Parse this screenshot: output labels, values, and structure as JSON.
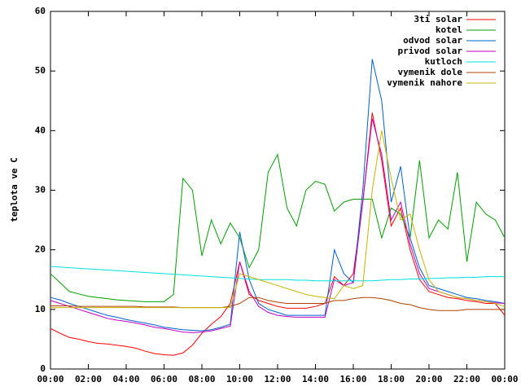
{
  "chart_data": {
    "type": "line",
    "ylabel": "teplota ve C",
    "x": [
      0,
      0.5,
      1,
      1.5,
      2,
      2.5,
      3,
      3.5,
      4,
      4.5,
      5,
      5.5,
      6,
      6.5,
      7,
      7.5,
      8,
      8.5,
      9,
      9.5,
      10,
      10.5,
      11,
      11.5,
      12,
      12.5,
      13,
      13.5,
      14,
      14.5,
      15,
      15.5,
      16,
      16.5,
      17,
      17.5,
      18,
      18.5,
      19,
      19.5,
      20,
      20.5,
      21,
      21.5,
      22,
      22.5,
      23,
      23.5,
      24
    ],
    "xlim": [
      0,
      24
    ],
    "xticks": [
      {
        "value": 0,
        "label": "00:00"
      },
      {
        "value": 2,
        "label": "02:00"
      },
      {
        "value": 4,
        "label": "04:00"
      },
      {
        "value": 6,
        "label": "06:00"
      },
      {
        "value": 8,
        "label": "08:00"
      },
      {
        "value": 10,
        "label": "10:00"
      },
      {
        "value": 12,
        "label": "12:00"
      },
      {
        "value": 14,
        "label": "14:00"
      },
      {
        "value": 16,
        "label": "16:00"
      },
      {
        "value": 18,
        "label": "18:00"
      },
      {
        "value": 20,
        "label": "20:00"
      },
      {
        "value": 22,
        "label": "22:00"
      },
      {
        "value": 24,
        "label": "00:00"
      }
    ],
    "ylim": [
      0,
      60
    ],
    "yticks": [
      0,
      10,
      20,
      30,
      40,
      50,
      60
    ],
    "legend": "top-right",
    "series": [
      {
        "name": "3ti solar",
        "color": "#ff0000",
        "values": [
          6.8,
          6,
          5.3,
          5,
          4.6,
          4.3,
          4.2,
          4,
          3.8,
          3.5,
          3,
          2.6,
          2.4,
          2.3,
          2.7,
          4,
          6,
          7.5,
          8.8,
          11,
          18,
          12.5,
          11.5,
          11,
          10.5,
          10.2,
          10.2,
          10.2,
          10.5,
          11,
          15.5,
          14,
          16,
          28,
          43,
          35,
          24,
          27,
          20,
          15,
          13,
          12.5,
          12,
          11.8,
          11.5,
          11.3,
          11,
          11,
          9
        ]
      },
      {
        "name": "kotel",
        "color": "#00a000",
        "values": [
          16,
          14.5,
          13,
          12.6,
          12.2,
          12,
          11.8,
          11.6,
          11.5,
          11.4,
          11.3,
          11.3,
          11.3,
          12.5,
          32,
          30,
          19,
          25,
          21,
          24.5,
          22,
          17,
          20,
          33,
          36,
          27,
          24,
          30,
          31.5,
          31,
          26.5,
          28,
          28.5,
          28.5,
          28.5,
          22,
          27,
          26,
          22,
          35,
          22,
          25,
          23.5,
          33,
          18,
          28,
          26,
          25,
          22
        ]
      },
      {
        "name": "odvod solar",
        "color": "#0060d0",
        "values": [
          12,
          11.6,
          11,
          10.5,
          10,
          9.5,
          9,
          8.7,
          8.3,
          8,
          7.7,
          7.4,
          7,
          6.8,
          6.6,
          6.5,
          6.4,
          6.6,
          7,
          7.5,
          23,
          15,
          11,
          10,
          9.5,
          9,
          9,
          9,
          9,
          9,
          20,
          16,
          14.5,
          30,
          52,
          45,
          28,
          34,
          22,
          17,
          14,
          13.5,
          13,
          12.5,
          12,
          11.8,
          11.5,
          11.3,
          11
        ]
      },
      {
        "name": "privod solar",
        "color": "#c000c0",
        "values": [
          11.5,
          11,
          10.5,
          10,
          9.5,
          9,
          8.5,
          8.2,
          8,
          7.7,
          7.4,
          7,
          6.8,
          6.5,
          6.2,
          6.1,
          6.2,
          6.4,
          6.8,
          7.2,
          18,
          13,
          10.5,
          9.5,
          9,
          8.8,
          8.7,
          8.7,
          8.7,
          8.7,
          15,
          14,
          14.5,
          28,
          42,
          36,
          25,
          28,
          21,
          16,
          13.5,
          13,
          12.5,
          12,
          11.8,
          11.5,
          11.3,
          11.1,
          11
        ]
      },
      {
        "name": "kutloch",
        "color": "#00e0e0",
        "values": [
          17.2,
          17.1,
          17,
          16.9,
          16.8,
          16.7,
          16.6,
          16.5,
          16.4,
          16.3,
          16.2,
          16.1,
          16,
          15.9,
          15.8,
          15.7,
          15.6,
          15.5,
          15.4,
          15.3,
          15.2,
          15.1,
          15,
          15,
          15,
          15,
          14.9,
          14.9,
          14.8,
          14.8,
          14.8,
          14.8,
          14.8,
          14.8,
          14.8,
          14.9,
          15,
          15,
          15.1,
          15.1,
          15.2,
          15.2,
          15.3,
          15.3,
          15.4,
          15.4,
          15.5,
          15.5,
          15.5
        ]
      },
      {
        "name": "vymenik dole",
        "color": "#b04000",
        "values": [
          10.6,
          10.6,
          10.6,
          10.5,
          10.5,
          10.5,
          10.5,
          10.5,
          10.5,
          10.5,
          10.4,
          10.4,
          10.4,
          10.4,
          10.3,
          10.3,
          10.3,
          10.3,
          10.3,
          10.5,
          11,
          12,
          12,
          11.5,
          11.2,
          11,
          11,
          11,
          11,
          11,
          11.5,
          11.5,
          11.8,
          12,
          12,
          11.8,
          11.5,
          11,
          10.8,
          10.3,
          10,
          9.8,
          9.8,
          9.8,
          10,
          10,
          10,
          10,
          10
        ]
      },
      {
        "name": "vymenik nahore",
        "color": "#c8b400",
        "values": [
          10.3,
          10.3,
          10.3,
          10.3,
          10.3,
          10.3,
          10.3,
          10.3,
          10.3,
          10.3,
          10.3,
          10.3,
          10.3,
          10.3,
          10.3,
          10.3,
          10.3,
          10.3,
          10.3,
          10.3,
          16,
          15.5,
          15,
          14.5,
          14,
          13.5,
          13,
          12.5,
          12.2,
          12,
          11.8,
          14,
          13.5,
          14,
          30,
          40,
          32,
          25,
          26,
          20,
          15,
          13,
          12.5,
          12,
          11.8,
          11.5,
          11.3,
          11,
          10.5
        ]
      }
    ]
  }
}
